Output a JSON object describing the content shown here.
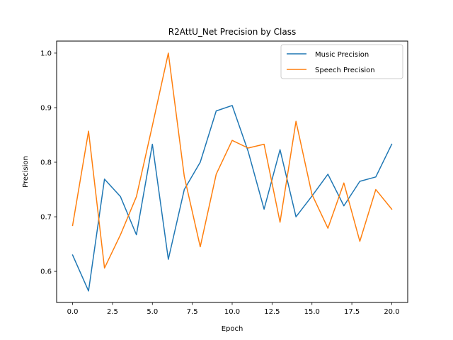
{
  "chart_data": {
    "type": "line",
    "title": "R2AttU_Net Precision by Class",
    "xlabel": "Epoch",
    "ylabel": "Precision",
    "xlim": [
      -1.0,
      21.0
    ],
    "ylim": [
      0.543,
      1.022
    ],
    "xticks": [
      0.0,
      2.5,
      5.0,
      7.5,
      10.0,
      12.5,
      15.0,
      17.5,
      20.0
    ],
    "xtick_labels": [
      "0.0",
      "2.5",
      "5.0",
      "7.5",
      "10.0",
      "12.5",
      "15.0",
      "17.5",
      "20.0"
    ],
    "yticks": [
      0.6,
      0.7,
      0.8,
      0.9,
      1.0
    ],
    "ytick_labels": [
      "0.6",
      "0.7",
      "0.8",
      "0.9",
      "1.0"
    ],
    "grid": false,
    "legend_position": "top-right",
    "x": [
      0,
      1,
      2,
      3,
      4,
      5,
      6,
      7,
      8,
      9,
      10,
      11,
      12,
      13,
      14,
      15,
      16,
      17,
      18,
      19,
      20
    ],
    "series": [
      {
        "name": "Music Precision",
        "color": "#1f77b4",
        "values": [
          0.63,
          0.564,
          0.769,
          0.737,
          0.667,
          0.833,
          0.622,
          0.75,
          0.8,
          0.894,
          0.904,
          0.82,
          0.714,
          0.823,
          0.7,
          0.738,
          0.778,
          0.72,
          0.765,
          0.773,
          0.833
        ]
      },
      {
        "name": "Speech Precision",
        "color": "#ff7f0e",
        "values": [
          0.684,
          0.857,
          0.606,
          0.667,
          0.737,
          0.867,
          1.0,
          0.774,
          0.645,
          0.778,
          0.84,
          0.826,
          0.833,
          0.69,
          0.875,
          0.741,
          0.679,
          0.762,
          0.655,
          0.75,
          0.714
        ]
      }
    ]
  }
}
